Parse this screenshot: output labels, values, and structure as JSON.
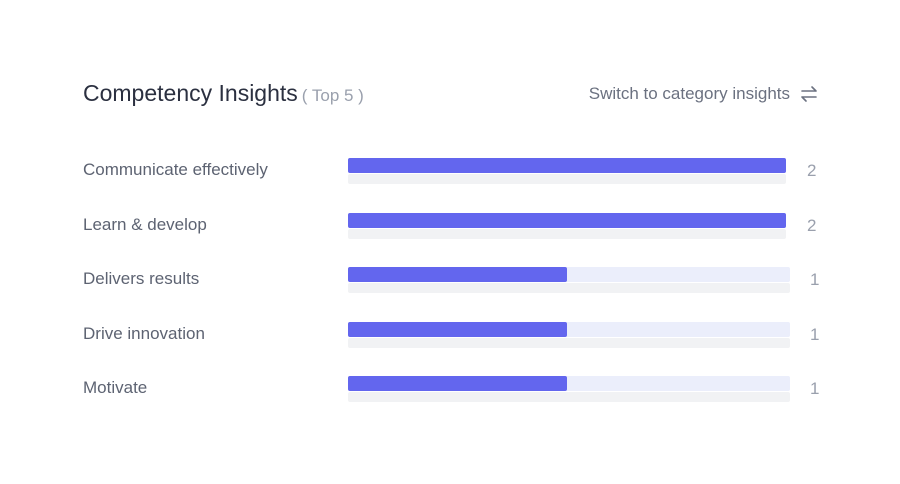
{
  "header": {
    "title": "Competency Insights",
    "subtitle": "( Top 5 )",
    "switch_label": "Switch to category insights",
    "switch_icon": "swap-arrows-icon"
  },
  "colors": {
    "bar": "#6366ee",
    "track": "#ebeefb"
  },
  "chart_data": {
    "type": "bar",
    "orientation": "horizontal",
    "categories": [
      "Communicate effectively",
      "Learn & develop",
      "Delivers results",
      "Drive innovation",
      "Motivate"
    ],
    "values": [
      2,
      2,
      1,
      1,
      1
    ],
    "xlim": [
      0,
      2
    ]
  }
}
